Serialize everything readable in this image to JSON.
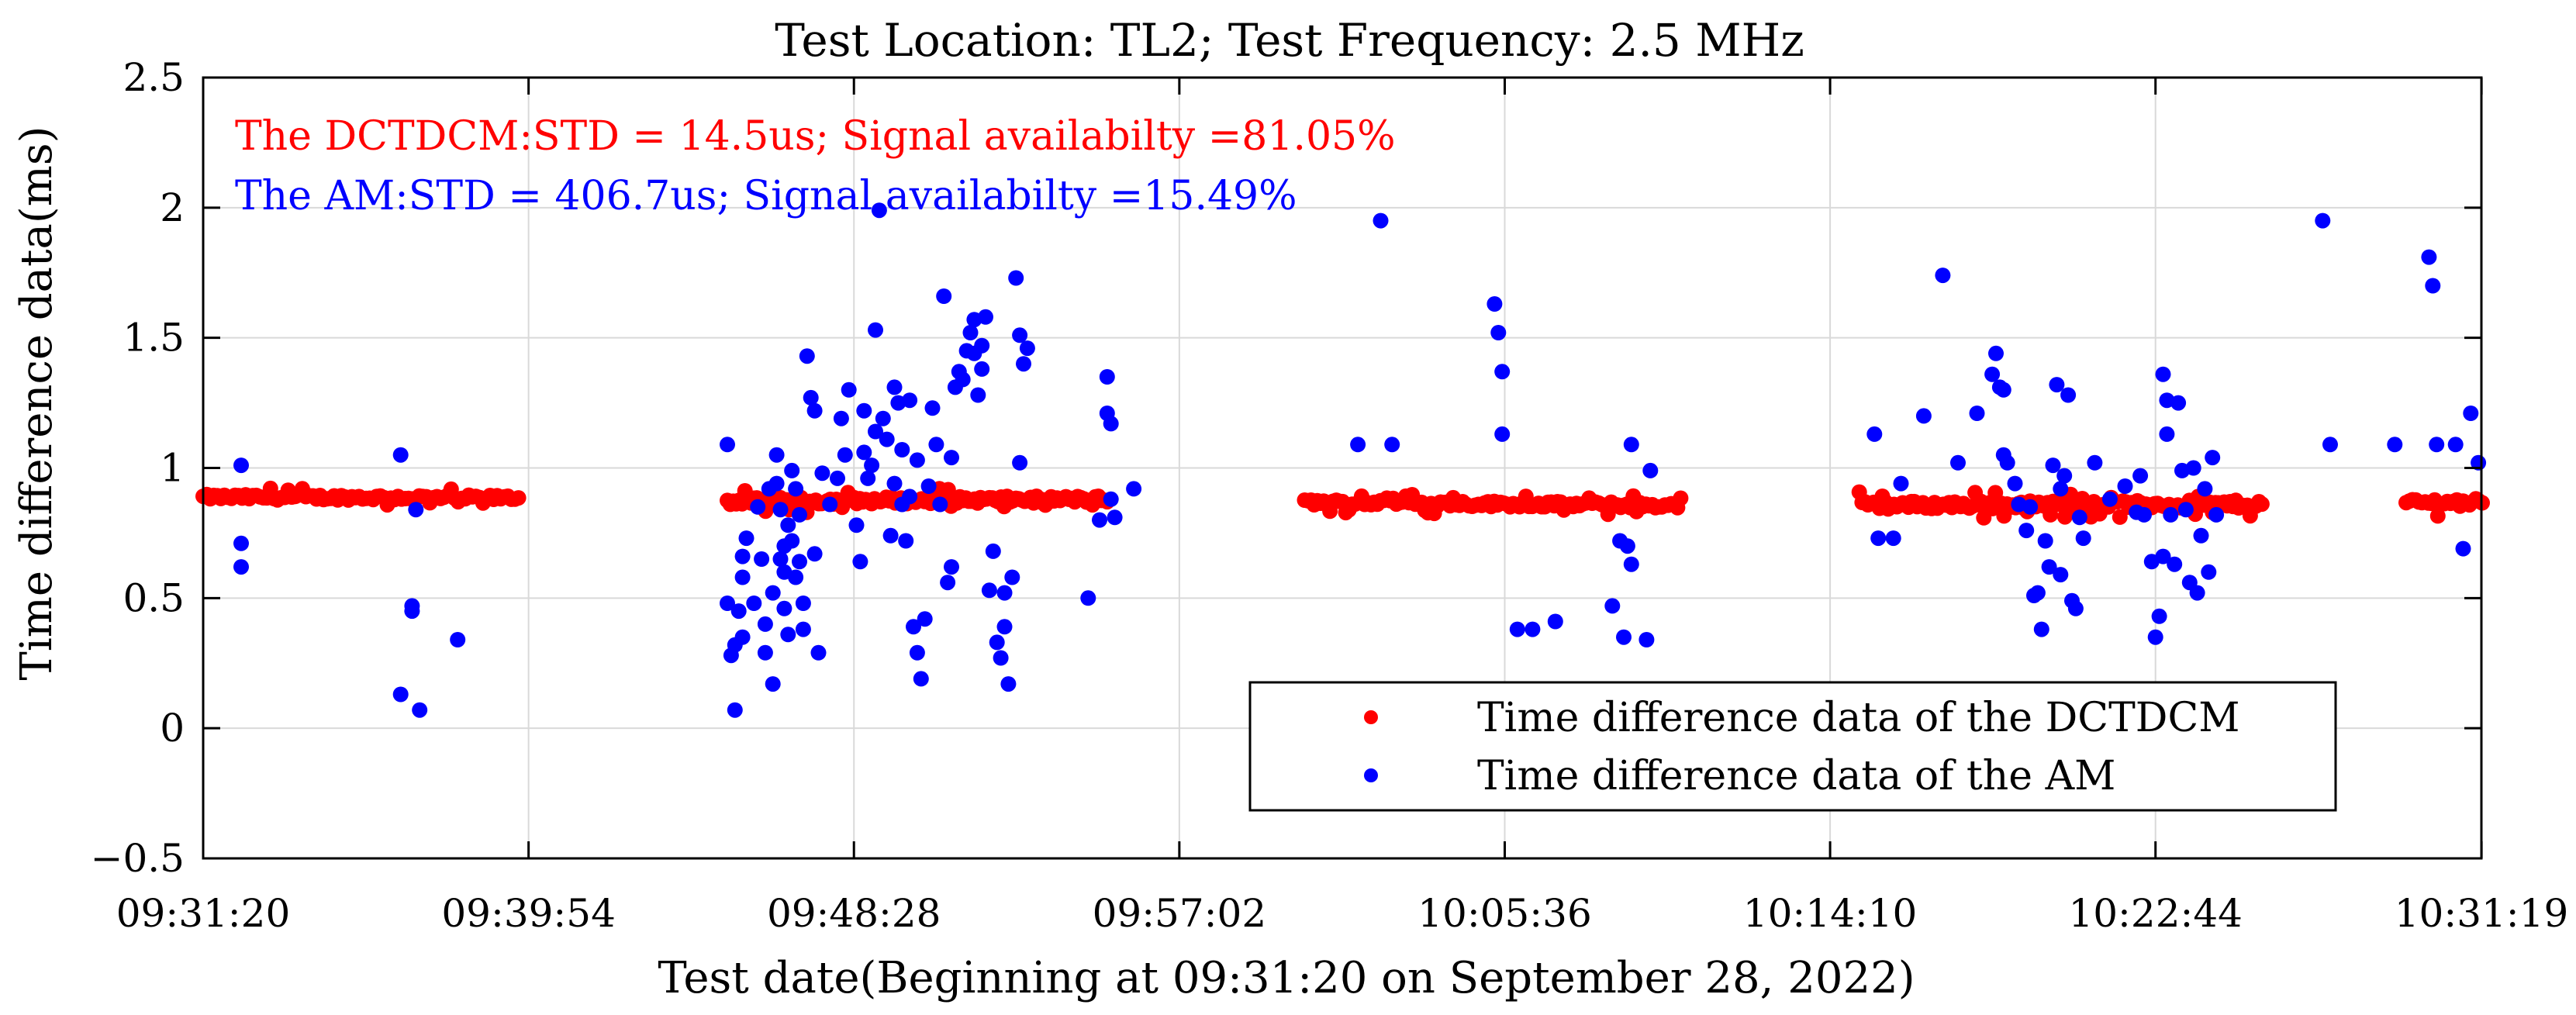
{
  "chart_data": {
    "type": "scatter",
    "title": "Test Location: TL2; Test Frequency: 2.5 MHz",
    "xlabel": "Test date(Beginning at 09:31:20 on September 28, 2022)",
    "ylabel": "Time difference data(ms)",
    "x_unit": "minutes since 09:31:20",
    "xlim": [
      0,
      59.98
    ],
    "ylim": [
      -0.5,
      2.5
    ],
    "grid": true,
    "legend_position": "bottom-right",
    "x_ticks": [
      {
        "value": 0,
        "label": "09:31:20"
      },
      {
        "value": 8.567,
        "label": "09:39:54"
      },
      {
        "value": 17.133,
        "label": "09:48:28"
      },
      {
        "value": 25.7,
        "label": "09:57:02"
      },
      {
        "value": 34.267,
        "label": "10:05:36"
      },
      {
        "value": 42.833,
        "label": "10:14:10"
      },
      {
        "value": 51.4,
        "label": "10:22:44"
      },
      {
        "value": 59.983,
        "label": "10:31:19"
      }
    ],
    "y_ticks": [
      {
        "value": -0.5,
        "label": "−0.5"
      },
      {
        "value": 0,
        "label": "0"
      },
      {
        "value": 0.5,
        "label": "0.5"
      },
      {
        "value": 1,
        "label": "1"
      },
      {
        "value": 1.5,
        "label": "1.5"
      },
      {
        "value": 2,
        "label": "2"
      },
      {
        "value": 2.5,
        "label": "2.5"
      }
    ],
    "annotations": [
      {
        "text": "The DCTDCM:STD = 14.5us; Signal availabilty =81.05%",
        "color": "#ff0000"
      },
      {
        "text": "The AM:STD = 406.7us; Signal availabilty =15.49%",
        "color": "#0000ff"
      }
    ],
    "series": [
      {
        "name": "Time difference data of the DCTDCM",
        "color": "#ff0000",
        "segments": [
          {
            "x_start": 0.0,
            "x_end": 8.3,
            "n": 90,
            "y_base": 0.888,
            "y_trend": -0.003,
            "jitter": 0.01
          },
          {
            "x_start": 13.8,
            "x_end": 23.8,
            "n": 130,
            "y_base": 0.872,
            "y_trend": 0.008,
            "jitter": 0.013
          },
          {
            "x_start": 29.0,
            "x_end": 38.9,
            "n": 120,
            "y_base": 0.868,
            "y_trend": -0.012,
            "jitter": 0.011
          },
          {
            "x_start": 43.6,
            "x_end": 54.2,
            "n": 140,
            "y_base": 0.857,
            "y_trend": 0.004,
            "jitter": 0.015
          },
          {
            "x_start": 58.0,
            "x_end": 60.0,
            "n": 25,
            "y_base": 0.868,
            "y_trend": 0.0,
            "jitter": 0.015
          }
        ]
      },
      {
        "name": "Time difference data of the AM",
        "color": "#0000ff",
        "points": [
          [
            1.0,
            1.01
          ],
          [
            1.0,
            0.71
          ],
          [
            1.0,
            0.62
          ],
          [
            5.2,
            1.05
          ],
          [
            5.2,
            0.13
          ],
          [
            5.5,
            0.47
          ],
          [
            5.5,
            0.45
          ],
          [
            5.6,
            0.84
          ],
          [
            5.7,
            0.07
          ],
          [
            6.7,
            0.34
          ],
          [
            13.8,
            1.09
          ],
          [
            13.8,
            0.48
          ],
          [
            13.9,
            0.28
          ],
          [
            14.0,
            0.32
          ],
          [
            14.0,
            0.07
          ],
          [
            14.1,
            0.45
          ],
          [
            14.2,
            0.35
          ],
          [
            14.2,
            0.58
          ],
          [
            14.2,
            0.66
          ],
          [
            14.3,
            0.73
          ],
          [
            14.5,
            0.48
          ],
          [
            14.6,
            0.85
          ],
          [
            14.7,
            0.65
          ],
          [
            14.8,
            0.29
          ],
          [
            14.8,
            0.4
          ],
          [
            14.9,
            0.92
          ],
          [
            15.0,
            0.17
          ],
          [
            15.0,
            0.52
          ],
          [
            15.1,
            0.94
          ],
          [
            15.1,
            1.05
          ],
          [
            15.2,
            0.65
          ],
          [
            15.2,
            0.84
          ],
          [
            15.3,
            0.46
          ],
          [
            15.3,
            0.6
          ],
          [
            15.3,
            0.7
          ],
          [
            15.4,
            0.36
          ],
          [
            15.4,
            0.78
          ],
          [
            15.5,
            0.72
          ],
          [
            15.5,
            0.99
          ],
          [
            15.6,
            0.92
          ],
          [
            15.6,
            0.58
          ],
          [
            15.7,
            0.82
          ],
          [
            15.7,
            0.64
          ],
          [
            15.8,
            0.38
          ],
          [
            15.8,
            0.48
          ],
          [
            15.9,
            1.43
          ],
          [
            16.0,
            1.27
          ],
          [
            16.1,
            1.22
          ],
          [
            16.1,
            0.67
          ],
          [
            16.2,
            0.29
          ],
          [
            16.3,
            0.98
          ],
          [
            16.5,
            0.86
          ],
          [
            16.7,
            0.96
          ],
          [
            16.8,
            1.19
          ],
          [
            16.9,
            1.05
          ],
          [
            17.0,
            1.3
          ],
          [
            17.2,
            0.78
          ],
          [
            17.3,
            0.64
          ],
          [
            17.4,
            1.22
          ],
          [
            17.4,
            1.06
          ],
          [
            17.5,
            0.96
          ],
          [
            17.6,
            1.01
          ],
          [
            17.7,
            1.14
          ],
          [
            17.7,
            1.53
          ],
          [
            17.8,
            1.99
          ],
          [
            17.9,
            1.19
          ],
          [
            18.0,
            1.11
          ],
          [
            18.1,
            0.74
          ],
          [
            18.2,
            0.94
          ],
          [
            18.2,
            1.31
          ],
          [
            18.3,
            1.25
          ],
          [
            18.4,
            1.07
          ],
          [
            18.4,
            0.86
          ],
          [
            18.5,
            0.72
          ],
          [
            18.6,
            0.89
          ],
          [
            18.6,
            1.26
          ],
          [
            18.7,
            0.39
          ],
          [
            18.8,
            1.03
          ],
          [
            18.8,
            0.29
          ],
          [
            18.9,
            0.19
          ],
          [
            19.0,
            0.42
          ],
          [
            19.1,
            0.93
          ],
          [
            19.2,
            1.23
          ],
          [
            19.3,
            1.09
          ],
          [
            19.4,
            0.86
          ],
          [
            19.5,
            1.66
          ],
          [
            19.6,
            0.56
          ],
          [
            19.7,
            1.04
          ],
          [
            19.7,
            0.62
          ],
          [
            19.8,
            1.31
          ],
          [
            19.9,
            1.37
          ],
          [
            20.0,
            1.34
          ],
          [
            20.1,
            1.45
          ],
          [
            20.2,
            1.52
          ],
          [
            20.3,
            1.57
          ],
          [
            20.3,
            1.44
          ],
          [
            20.4,
            1.28
          ],
          [
            20.5,
            1.38
          ],
          [
            20.5,
            1.47
          ],
          [
            20.6,
            1.58
          ],
          [
            20.7,
            0.53
          ],
          [
            20.8,
            0.68
          ],
          [
            20.9,
            0.33
          ],
          [
            21.0,
            0.27
          ],
          [
            21.1,
            0.52
          ],
          [
            21.1,
            0.39
          ],
          [
            21.2,
            0.17
          ],
          [
            21.3,
            0.58
          ],
          [
            21.4,
            1.73
          ],
          [
            21.5,
            1.02
          ],
          [
            21.5,
            1.51
          ],
          [
            21.6,
            1.4
          ],
          [
            21.7,
            1.46
          ],
          [
            23.3,
            0.5
          ],
          [
            23.6,
            0.8
          ],
          [
            23.8,
            1.21
          ],
          [
            23.8,
            1.35
          ],
          [
            23.9,
            1.17
          ],
          [
            23.9,
            0.88
          ],
          [
            24.0,
            0.81
          ],
          [
            24.5,
            0.92
          ],
          [
            30.4,
            1.09
          ],
          [
            31.0,
            1.95
          ],
          [
            31.3,
            1.09
          ],
          [
            34.0,
            1.63
          ],
          [
            34.1,
            1.52
          ],
          [
            34.2,
            1.37
          ],
          [
            34.2,
            1.13
          ],
          [
            34.6,
            0.38
          ],
          [
            35.0,
            0.38
          ],
          [
            35.6,
            0.41
          ],
          [
            37.1,
            0.47
          ],
          [
            37.3,
            0.72
          ],
          [
            37.4,
            0.35
          ],
          [
            37.5,
            0.7
          ],
          [
            37.6,
            0.63
          ],
          [
            37.6,
            1.09
          ],
          [
            38.0,
            0.34
          ],
          [
            38.1,
            0.99
          ],
          [
            44.0,
            1.13
          ],
          [
            44.1,
            0.73
          ],
          [
            44.5,
            0.73
          ],
          [
            44.7,
            0.94
          ],
          [
            45.3,
            1.2
          ],
          [
            45.8,
            1.74
          ],
          [
            46.2,
            1.02
          ],
          [
            46.7,
            1.21
          ],
          [
            47.1,
            1.36
          ],
          [
            47.2,
            1.44
          ],
          [
            47.3,
            1.31
          ],
          [
            47.4,
            1.3
          ],
          [
            47.4,
            1.05
          ],
          [
            47.5,
            1.02
          ],
          [
            47.7,
            0.94
          ],
          [
            47.8,
            0.86
          ],
          [
            48.0,
            0.76
          ],
          [
            48.1,
            0.85
          ],
          [
            48.2,
            0.51
          ],
          [
            48.3,
            0.52
          ],
          [
            48.4,
            0.38
          ],
          [
            48.5,
            0.72
          ],
          [
            48.6,
            0.62
          ],
          [
            48.7,
            1.01
          ],
          [
            48.8,
            1.32
          ],
          [
            48.9,
            0.92
          ],
          [
            48.9,
            0.59
          ],
          [
            49.0,
            0.97
          ],
          [
            49.1,
            1.28
          ],
          [
            49.2,
            0.49
          ],
          [
            49.3,
            0.46
          ],
          [
            49.4,
            0.81
          ],
          [
            49.5,
            0.73
          ],
          [
            49.8,
            1.02
          ],
          [
            50.2,
            0.88
          ],
          [
            50.6,
            0.93
          ],
          [
            50.9,
            0.83
          ],
          [
            51.0,
            0.97
          ],
          [
            51.1,
            0.82
          ],
          [
            51.3,
            0.64
          ],
          [
            51.4,
            0.35
          ],
          [
            51.5,
            0.43
          ],
          [
            51.6,
            1.36
          ],
          [
            51.6,
            0.66
          ],
          [
            51.7,
            1.26
          ],
          [
            51.7,
            1.13
          ],
          [
            51.8,
            0.82
          ],
          [
            51.9,
            0.63
          ],
          [
            52.0,
            1.25
          ],
          [
            52.1,
            0.99
          ],
          [
            52.2,
            0.84
          ],
          [
            52.3,
            0.56
          ],
          [
            52.4,
            1.0
          ],
          [
            52.5,
            0.52
          ],
          [
            52.6,
            0.74
          ],
          [
            52.7,
            0.92
          ],
          [
            52.8,
            0.6
          ],
          [
            52.9,
            1.04
          ],
          [
            53.0,
            0.82
          ],
          [
            55.8,
            1.95
          ],
          [
            56.0,
            1.09
          ],
          [
            57.7,
            1.09
          ],
          [
            58.6,
            1.81
          ],
          [
            58.7,
            1.7
          ],
          [
            58.8,
            1.09
          ],
          [
            59.3,
            1.09
          ],
          [
            59.5,
            0.69
          ],
          [
            59.7,
            1.21
          ],
          [
            59.9,
            1.02
          ]
        ]
      }
    ]
  }
}
